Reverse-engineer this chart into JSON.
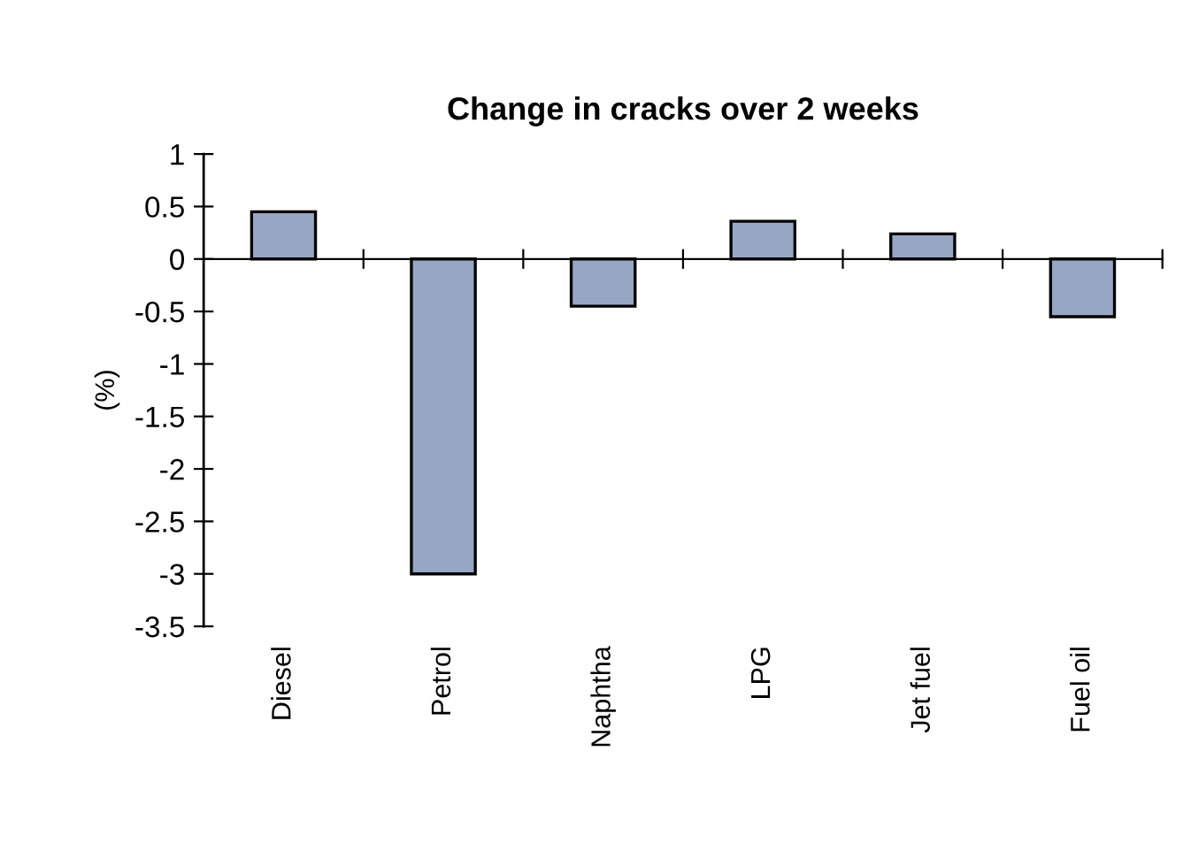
{
  "chart_data": {
    "type": "bar",
    "title": "Change in cracks over 2 weeks",
    "ylabel": "(%)",
    "categories": [
      "Diesel",
      "Petrol",
      "Naphtha",
      "LPG",
      "Jet fuel",
      "Fuel oil"
    ],
    "values": [
      0.45,
      -3.0,
      -0.45,
      0.36,
      0.24,
      -0.55
    ],
    "color": "#97a6c4",
    "ylim": [
      -3.5,
      1
    ],
    "yticks": [
      1,
      0.5,
      0,
      -0.5,
      -1,
      -1.5,
      -2,
      -2.5,
      -3,
      -3.5
    ]
  }
}
